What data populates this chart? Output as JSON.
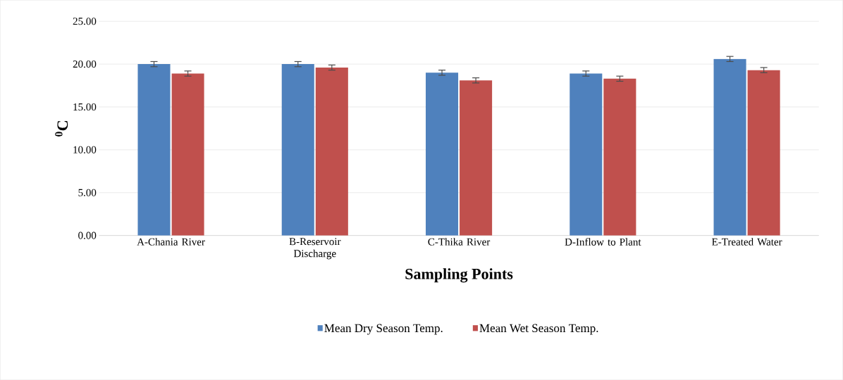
{
  "chart_data": {
    "type": "bar",
    "xlabel": "Sampling Points",
    "ylabel": "$^{0}$C",
    "categories": [
      "A-Chania River",
      "B-Reservoir Discharge",
      "C-Thika River",
      "D-Inflow to Plant",
      "E-Treated Water"
    ],
    "series": [
      {
        "name": "Mean Dry Season Temp.",
        "color": "#4f81bd",
        "values": [
          20.0,
          20.0,
          19.0,
          18.9,
          20.6
        ],
        "errors": [
          0.3,
          0.3,
          0.3,
          0.3,
          0.3
        ]
      },
      {
        "name": "Mean Wet Season Temp.",
        "color": "#c0504d",
        "values": [
          18.9,
          19.6,
          18.1,
          18.3,
          19.3
        ],
        "errors": [
          0.3,
          0.3,
          0.3,
          0.3,
          0.3
        ]
      }
    ],
    "ylim": [
      0,
      25
    ],
    "yticks": [
      {
        "value": 0,
        "label": "0.00"
      },
      {
        "value": 5,
        "label": "5.00"
      },
      {
        "value": 10,
        "label": "10.00"
      },
      {
        "value": 15,
        "label": "15.00"
      },
      {
        "value": 20,
        "label": "20.00"
      },
      {
        "value": 25,
        "label": "25.00"
      }
    ],
    "grid": "y",
    "legend": "bottom"
  }
}
